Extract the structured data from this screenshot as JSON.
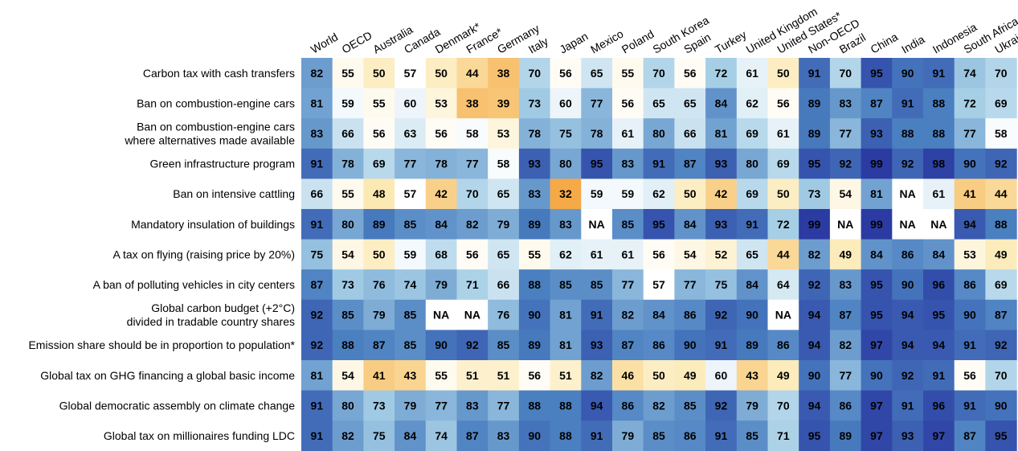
{
  "chart_data": {
    "type": "heatmap",
    "columns": [
      "World",
      "OECD",
      "Australia",
      "Canada",
      "Denmark*",
      "France*",
      "Germany",
      "Italy",
      "Japan",
      "Mexico",
      "Poland",
      "South Korea",
      "Spain",
      "Turkey",
      "United Kingdom",
      "United States*",
      "Non-OECD",
      "Brazil",
      "China",
      "India",
      "Indonesia",
      "South Africa",
      "Ukraine"
    ],
    "rows": [
      {
        "label": [
          "Carbon tax with cash transfers"
        ],
        "values": [
          82,
          55,
          50,
          57,
          50,
          44,
          38,
          70,
          56,
          65,
          55,
          70,
          56,
          72,
          61,
          50,
          91,
          70,
          95,
          90,
          91,
          74,
          70
        ]
      },
      {
        "label": [
          "Ban on combustion-engine cars"
        ],
        "values": [
          81,
          59,
          55,
          60,
          53,
          38,
          39,
          73,
          60,
          77,
          56,
          65,
          65,
          84,
          62,
          56,
          89,
          83,
          87,
          91,
          88,
          72,
          69
        ]
      },
      {
        "label": [
          "Ban on combustion-engine cars",
          "where alternatives made available"
        ],
        "values": [
          83,
          66,
          56,
          63,
          56,
          58,
          53,
          78,
          75,
          78,
          61,
          80,
          66,
          81,
          69,
          61,
          89,
          77,
          93,
          88,
          88,
          77,
          58
        ]
      },
      {
        "label": [
          "Green infrastructure program"
        ],
        "values": [
          91,
          78,
          69,
          77,
          78,
          77,
          58,
          93,
          80,
          95,
          83,
          91,
          87,
          93,
          80,
          69,
          95,
          92,
          99,
          92,
          98,
          90,
          92
        ]
      },
      {
        "label": [
          "Ban on intensive cattling"
        ],
        "values": [
          66,
          55,
          48,
          57,
          42,
          70,
          65,
          83,
          32,
          59,
          59,
          62,
          50,
          42,
          69,
          50,
          73,
          54,
          81,
          "NA",
          61,
          41,
          44
        ]
      },
      {
        "label": [
          "Mandatory insulation of buildings"
        ],
        "values": [
          91,
          80,
          89,
          85,
          84,
          82,
          79,
          89,
          83,
          "NA",
          85,
          95,
          84,
          93,
          91,
          72,
          99,
          "NA",
          99,
          "NA",
          "NA",
          94,
          88
        ]
      },
      {
        "label": [
          "A tax on flying (raising price by 20%)"
        ],
        "values": [
          75,
          54,
          50,
          59,
          68,
          56,
          65,
          55,
          62,
          61,
          61,
          56,
          54,
          52,
          65,
          44,
          82,
          49,
          84,
          86,
          84,
          53,
          49
        ]
      },
      {
        "label": [
          "A ban of polluting vehicles in city centers"
        ],
        "values": [
          87,
          73,
          76,
          74,
          79,
          71,
          66,
          88,
          85,
          85,
          77,
          57,
          77,
          75,
          84,
          64,
          92,
          83,
          95,
          90,
          96,
          86,
          69
        ]
      },
      {
        "label": [
          "Global carbon budget (+2°C)",
          "divided in tradable country shares"
        ],
        "values": [
          92,
          85,
          79,
          85,
          "NA",
          "NA",
          76,
          90,
          81,
          91,
          82,
          84,
          86,
          92,
          90,
          "NA",
          94,
          87,
          95,
          94,
          95,
          90,
          87
        ]
      },
      {
        "label": [
          "Emission share should be in proportion to population*"
        ],
        "values": [
          92,
          88,
          87,
          85,
          90,
          92,
          85,
          89,
          81,
          93,
          87,
          86,
          90,
          91,
          89,
          86,
          94,
          82,
          97,
          94,
          94,
          91,
          92
        ]
      },
      {
        "label": [
          "Global tax on GHG financing a global basic income"
        ],
        "values": [
          81,
          54,
          41,
          43,
          55,
          51,
          51,
          56,
          51,
          82,
          46,
          50,
          49,
          60,
          43,
          49,
          90,
          77,
          90,
          92,
          91,
          56,
          70
        ]
      },
      {
        "label": [
          "Global democratic assembly on climate change"
        ],
        "values": [
          91,
          80,
          73,
          79,
          77,
          83,
          77,
          88,
          88,
          94,
          86,
          82,
          85,
          92,
          79,
          70,
          94,
          86,
          97,
          91,
          96,
          91,
          90
        ]
      },
      {
        "label": [
          "Global tax on millionaires funding LDC"
        ],
        "values": [
          91,
          82,
          75,
          84,
          74,
          87,
          83,
          90,
          88,
          91,
          79,
          85,
          86,
          91,
          85,
          71,
          95,
          89,
          97,
          93,
          97,
          87,
          95
        ]
      }
    ],
    "na_label": "NA",
    "value_range": [
      30,
      100
    ],
    "colors": {
      "low": "#f4a13a",
      "mid_low": "#fce8b2",
      "mid": "#ffffff",
      "mid_high": "#a6cfe6",
      "high": "#4a7fc0",
      "top": "#2b3ba2",
      "na": "#ffffff",
      "text": "#000000"
    }
  }
}
